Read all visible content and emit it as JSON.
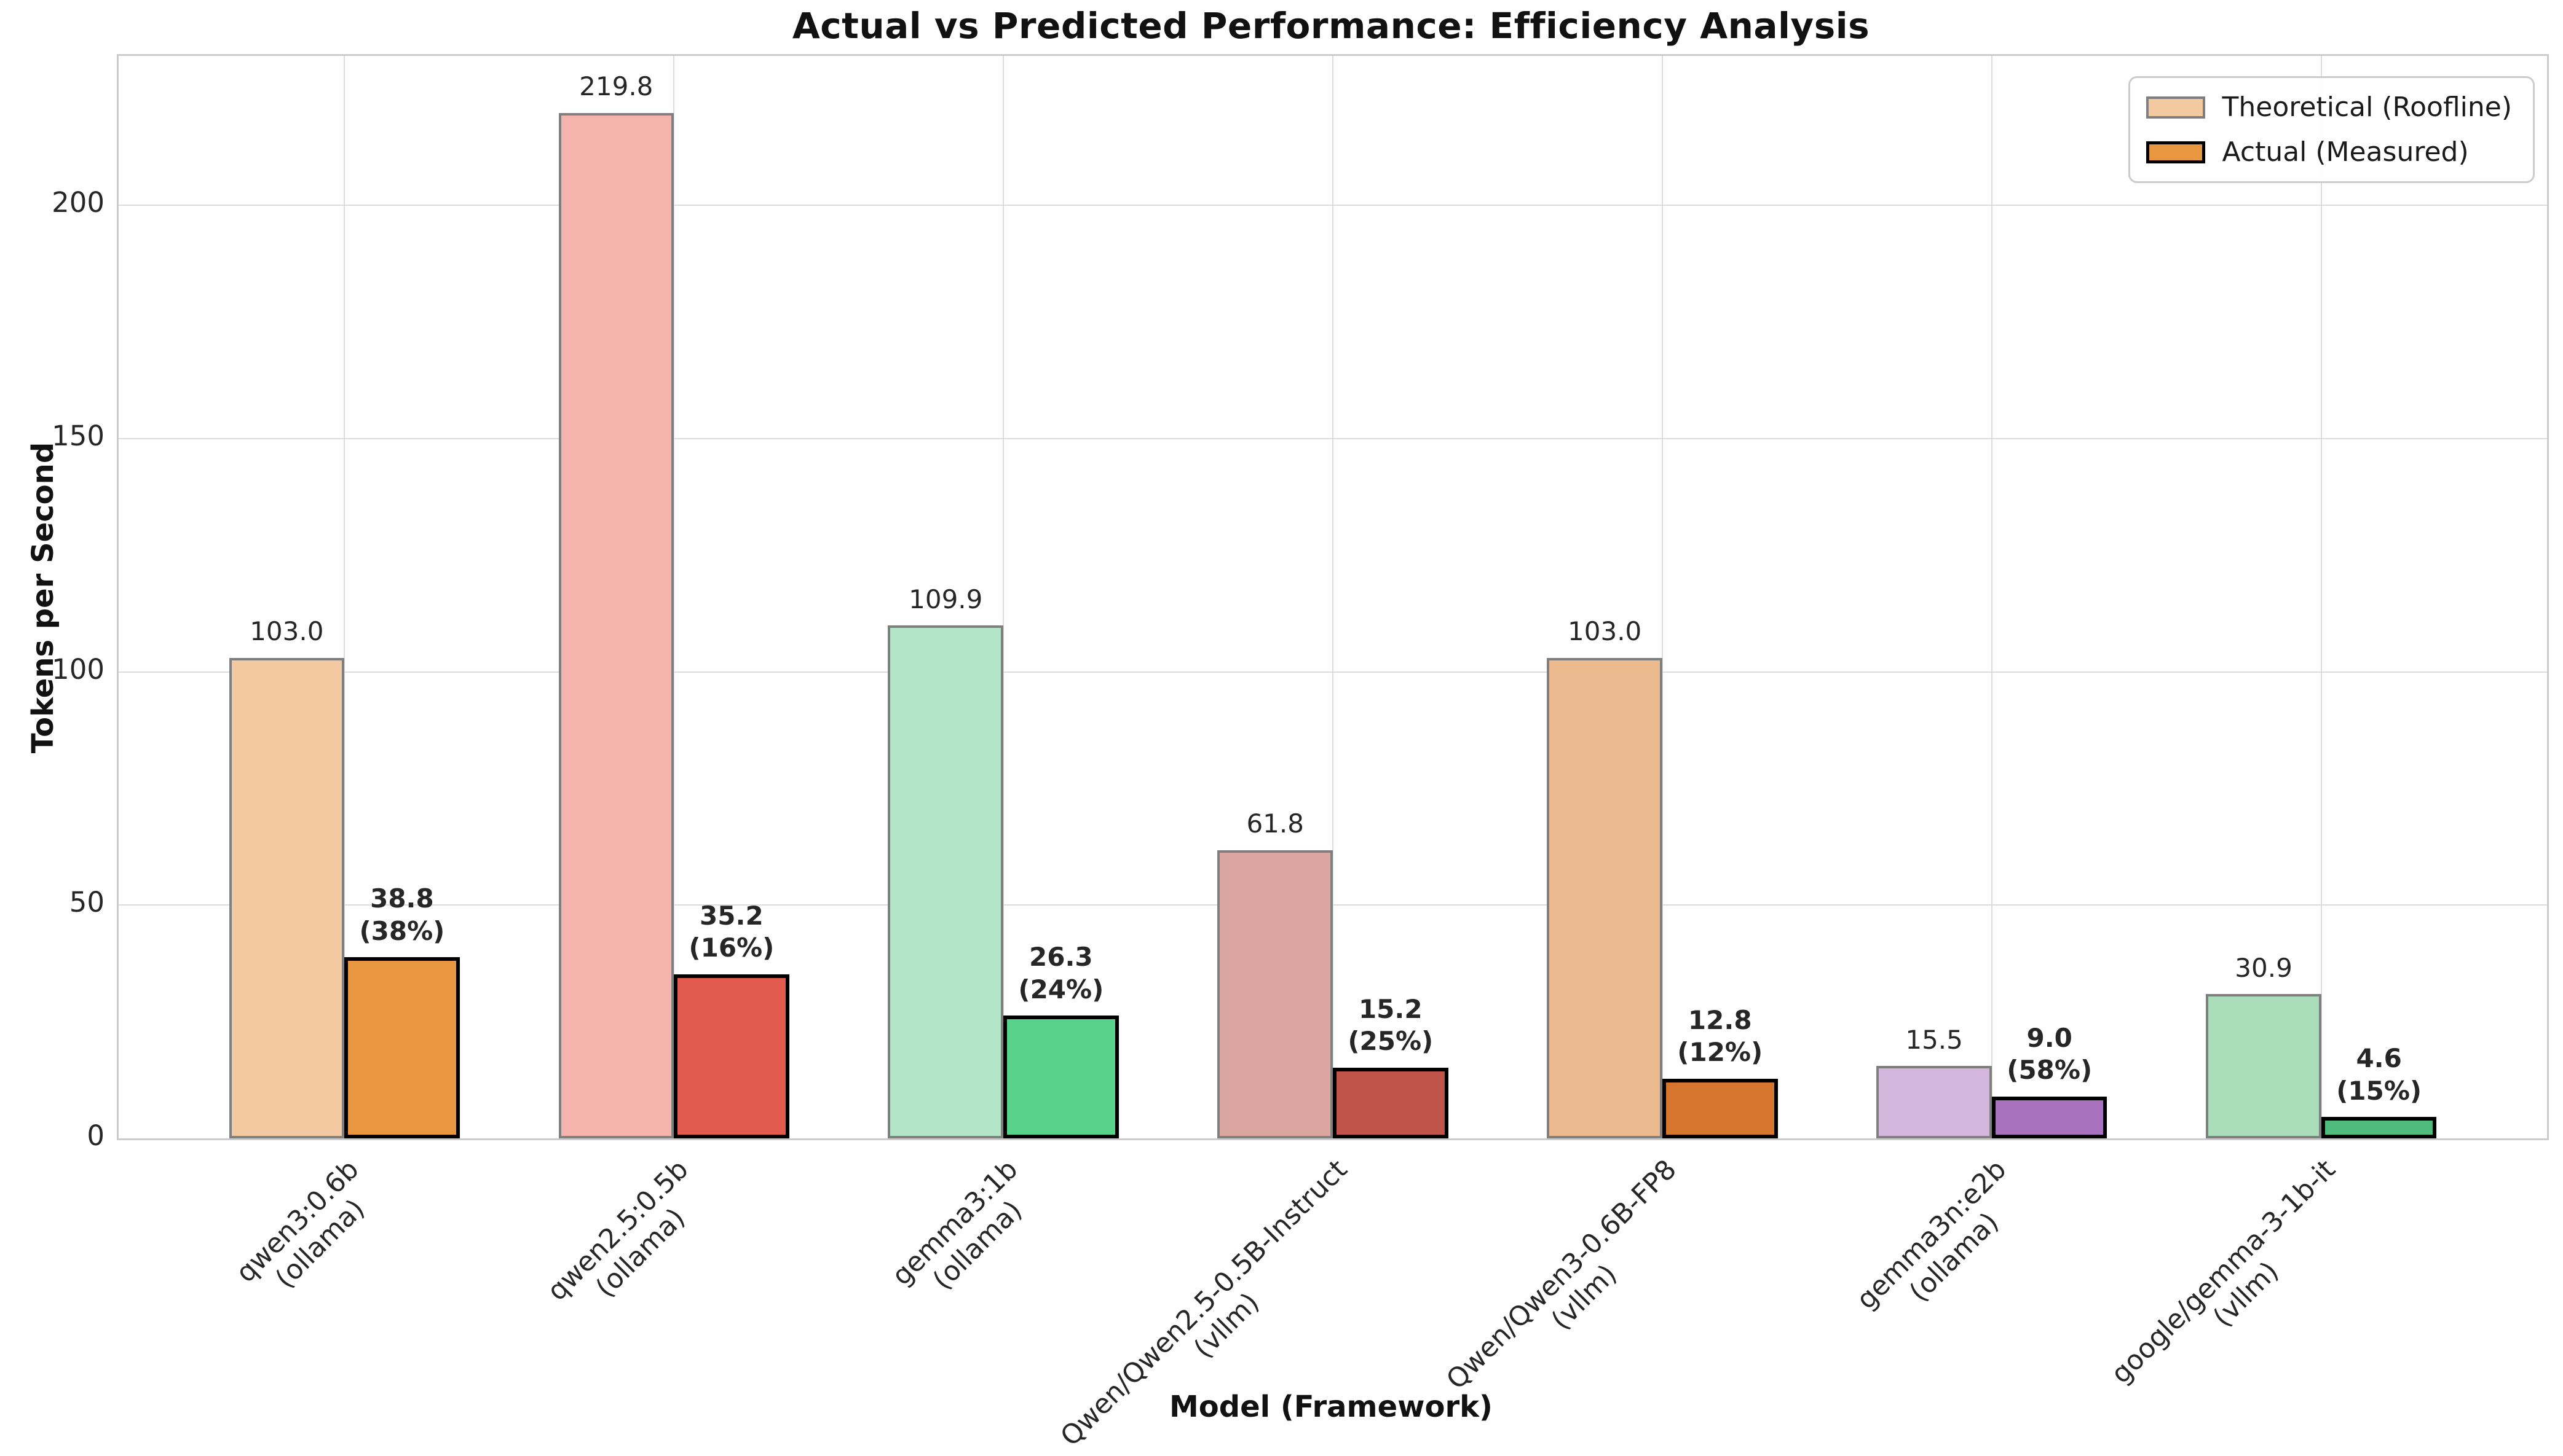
{
  "title": "Actual vs Predicted Performance: Efficiency Analysis",
  "xlabel": "Model (Framework)",
  "ylabel": "Tokens per Second",
  "legend": {
    "items": [
      {
        "label": "Theoretical (Roofline)",
        "fill": "#f2c9a0",
        "edge": "#7f7f7f"
      },
      {
        "label": "Actual (Measured)",
        "fill": "#e8963f",
        "edge": "#000000"
      }
    ]
  },
  "chart_data": {
    "type": "bar",
    "title": "Actual vs Predicted Performance: Efficiency Analysis",
    "xlabel": "Model (Framework)",
    "ylabel": "Tokens per Second",
    "categories": [
      {
        "model": "qwen3:0.6b",
        "framework": "(ollama)"
      },
      {
        "model": "qwen2.5:0.5b",
        "framework": "(ollama)"
      },
      {
        "model": "gemma3:1b",
        "framework": "(ollama)"
      },
      {
        "model": "Qwen/Qwen2.5-0.5B-Instruct",
        "framework": "(vllm)"
      },
      {
        "model": "Qwen/Qwen3-0.6B-FP8",
        "framework": "(vllm)"
      },
      {
        "model": "gemma3n:e2b",
        "framework": "(ollama)"
      },
      {
        "model": "google/gemma-3-1b-it",
        "framework": "(vllm)"
      }
    ],
    "series": [
      {
        "name": "Theoretical (Roofline)",
        "values": [
          103.0,
          219.8,
          109.9,
          61.8,
          103.0,
          15.5,
          30.9
        ]
      },
      {
        "name": "Actual (Measured)",
        "values": [
          38.8,
          35.2,
          26.3,
          15.2,
          12.8,
          9.0,
          4.6
        ]
      }
    ],
    "actual_pct": [
      "(38%)",
      "(16%)",
      "(24%)",
      "(25%)",
      "(12%)",
      "(58%)",
      "(15%)"
    ],
    "yticks": [
      0,
      50,
      100,
      150,
      200
    ],
    "ylim": [
      0,
      232
    ],
    "grid": true,
    "legend_position": "upper right",
    "colors": {
      "theoretical": [
        "#f2c9a0",
        "#f4b3ad",
        "#b2e6c6",
        "#dba69f",
        "#ebba8e",
        "#d4b6dd",
        "#a9dcb8"
      ],
      "actual": [
        "#e8963f",
        "#e15b4e",
        "#57d28b",
        "#c1544a",
        "#d6752d",
        "#a871bd",
        "#4fbc7d"
      ]
    }
  }
}
